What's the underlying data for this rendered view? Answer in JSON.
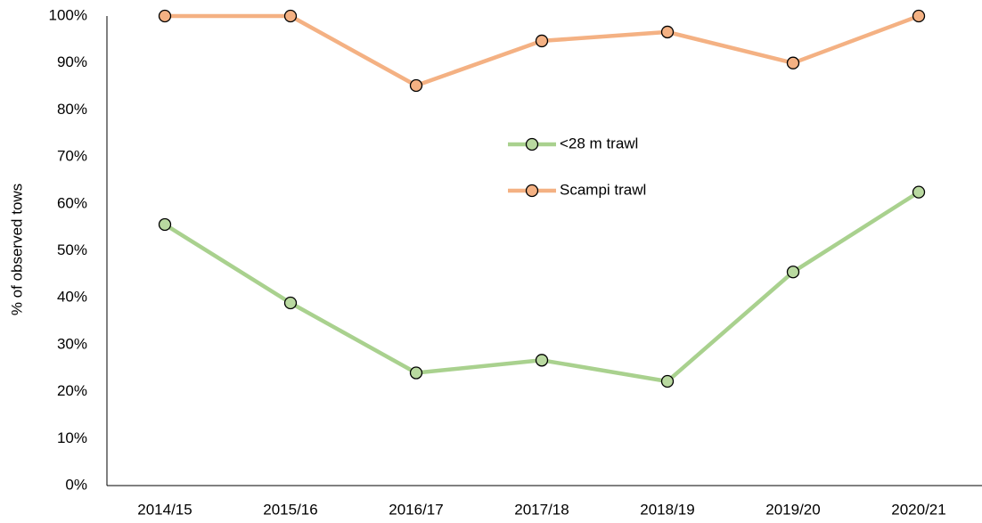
{
  "chart_data": {
    "type": "line",
    "y_label": "% of observed tows",
    "categories": [
      "2014/15",
      "2015/16",
      "2016/17",
      "2017/18",
      "2018/19",
      "2019/20",
      "2020/21"
    ],
    "series": [
      {
        "name": "<28 m trawl",
        "color": "#a9d18e",
        "marker_color": "#b9d9a0",
        "values": [
          55.6,
          38.9,
          24,
          26.7,
          22.2,
          45.5,
          62.5
        ]
      },
      {
        "name": "Scampi trawl",
        "color": "#f4b183",
        "marker_color": "#f4b183",
        "values": [
          100,
          100,
          85.2,
          94.7,
          96.6,
          90,
          100
        ]
      }
    ],
    "ylim": [
      0,
      100
    ],
    "yticks": [
      {
        "value": 0,
        "label": "0%"
      },
      {
        "value": 10,
        "label": "10%"
      },
      {
        "value": 20,
        "label": "20%"
      },
      {
        "value": 30,
        "label": "30%"
      },
      {
        "value": 40,
        "label": "40%"
      },
      {
        "value": 50,
        "label": "50%"
      },
      {
        "value": 60,
        "label": "60%"
      },
      {
        "value": 70,
        "label": "70%"
      },
      {
        "value": 80,
        "label": "80%"
      },
      {
        "value": 90,
        "label": "90%"
      },
      {
        "value": 100,
        "label": "100%"
      }
    ],
    "grid": false,
    "legend": "center"
  }
}
